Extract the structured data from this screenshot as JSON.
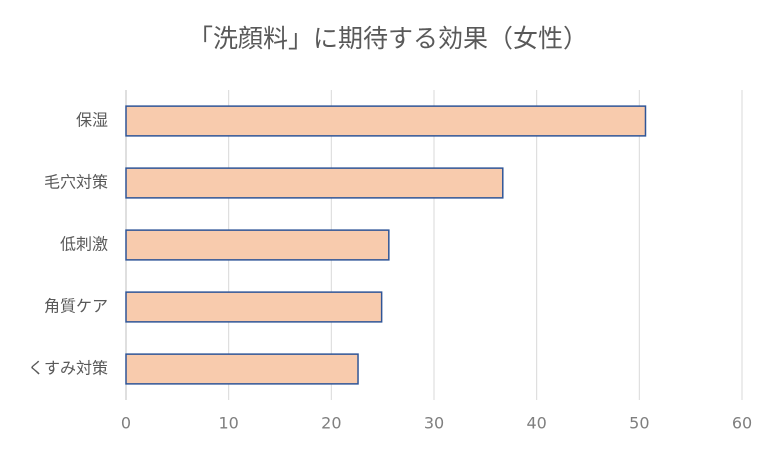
{
  "chart_data": {
    "type": "bar",
    "title": "「洗顔料」に期待する効果（女性）",
    "categories": [
      "保湿",
      "毛穴対策",
      "低刺激",
      "角質ケア",
      "くすみ対策"
    ],
    "values": [
      50.6,
      36.7,
      25.6,
      24.9,
      22.6
    ],
    "color": "#f8cbad",
    "edge_color": "#2f5597",
    "xlim": [
      0,
      60
    ],
    "xticks": [
      0,
      10,
      20,
      30,
      40,
      50,
      60
    ],
    "grid": true
  }
}
